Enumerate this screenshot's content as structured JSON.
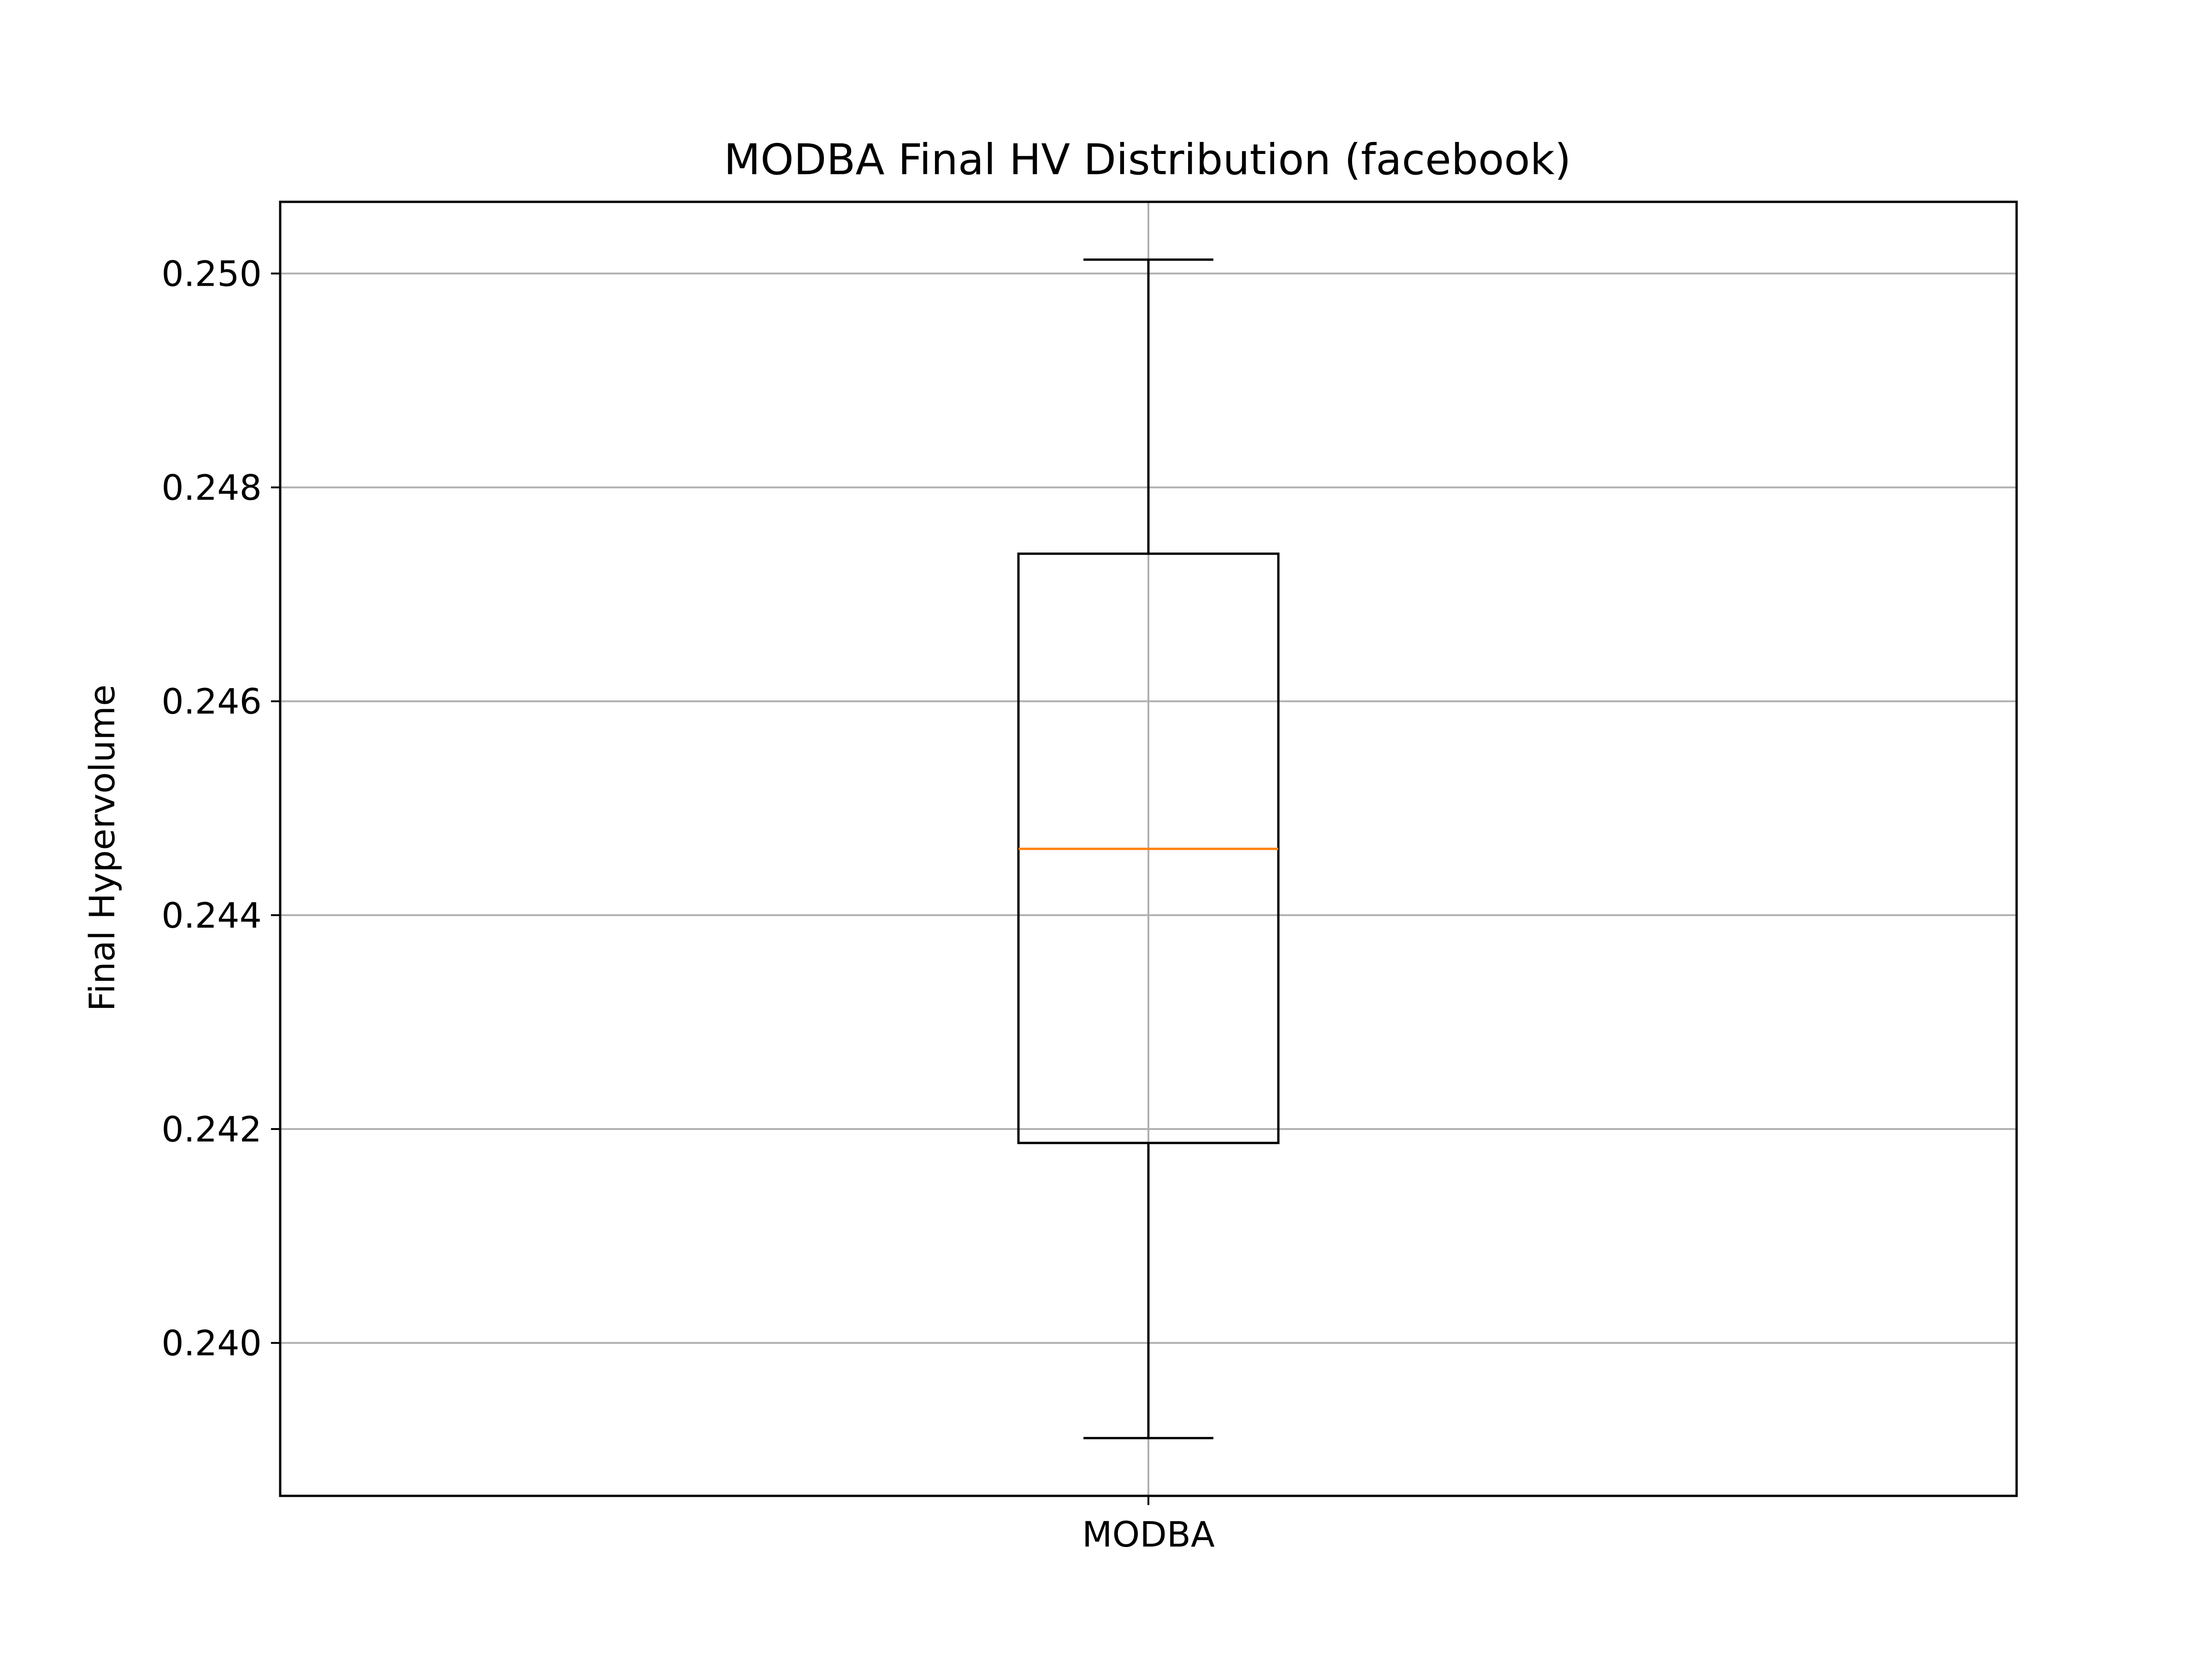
{
  "chart_data": {
    "type": "box",
    "title": "MODBA Final HV Distribution (facebook)",
    "xlabel": "",
    "ylabel": "Final Hypervolume",
    "categories": [
      "MODBA"
    ],
    "boxes": [
      {
        "category": "MODBA",
        "whisker_low": 0.23911,
        "q1": 0.24187,
        "median": 0.24462,
        "q3": 0.24738,
        "whisker_high": 0.25013
      }
    ],
    "ylim": [
      0.23857,
      0.25067
    ],
    "yticks": [
      0.24,
      0.242,
      0.244,
      0.246,
      0.248,
      0.25
    ],
    "ytick_labels": [
      "0.240",
      "0.242",
      "0.244",
      "0.246",
      "0.248",
      "0.250"
    ],
    "grid": true,
    "legend": "none",
    "colors": {
      "box": "#000000",
      "median": "#ff7f0e",
      "grid": "#b0b0b0",
      "axes": "#000000"
    }
  }
}
